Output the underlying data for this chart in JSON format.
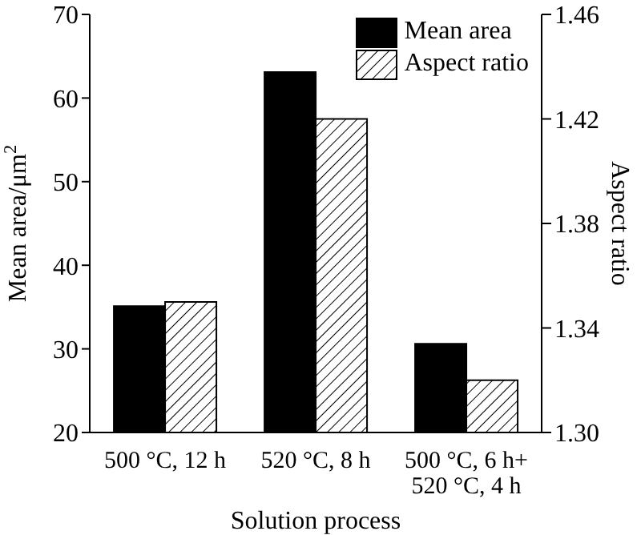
{
  "chart_data": {
    "type": "bar",
    "xlabel": "Solution process",
    "ylabel": "Mean area/μm$^{2}$",
    "y2label": "Aspect ratio",
    "categories": [
      "500 °C, 12 h",
      "520 °C, 8 h",
      "500 °C, 6 h+ 520 °C, 4 h"
    ],
    "series": [
      {
        "name": "Mean area",
        "color": "#000000",
        "values": [
          35.1,
          63.1,
          30.6
        ]
      },
      {
        "name": "Aspect ratio",
        "color": "#000000",
        "axis": "y2",
        "values": [
          1.35,
          1.42,
          1.32
        ]
      }
    ],
    "ylim": [
      20,
      70
    ],
    "yticks": [
      20,
      30,
      40,
      50,
      60,
      70
    ],
    "y2lim": [
      1.3,
      1.46
    ],
    "y2ticks": [
      {
        "value": 1.3,
        "label": "1.30"
      },
      {
        "value": 1.34,
        "label": "1.34"
      },
      {
        "value": 1.38,
        "label": "1.38"
      },
      {
        "value": 1.42,
        "label": "1.42"
      },
      {
        "value": 1.46,
        "label": "1.46"
      }
    ],
    "legend": "top right",
    "grid": false
  }
}
